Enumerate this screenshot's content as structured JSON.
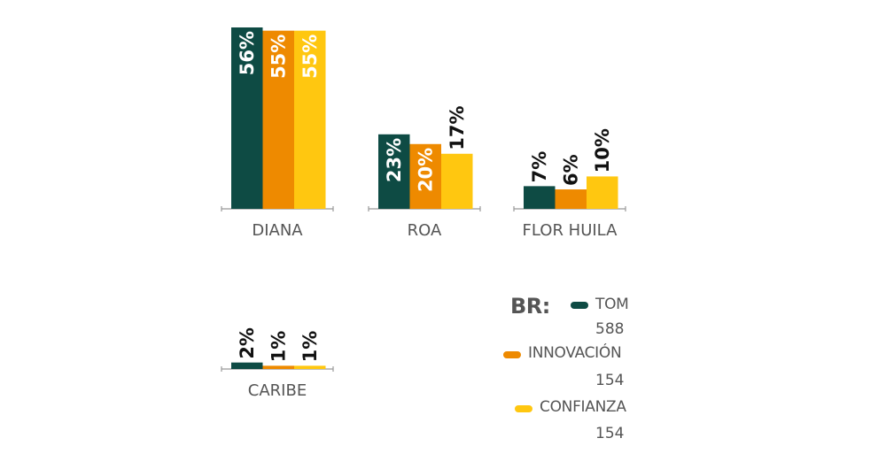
{
  "chart_data": {
    "type": "bar",
    "categories": [
      "DIANA",
      "ROA",
      "FLOR HUILA",
      "CARIBE"
    ],
    "series": [
      {
        "name": "TOM",
        "values": [
          56,
          23,
          7,
          2
        ],
        "labels": [
          "56%",
          "23%",
          "7%",
          "2%"
        ],
        "color": "#0e4b44"
      },
      {
        "name": "INNOVACIÓN",
        "values": [
          55,
          20,
          6,
          1
        ],
        "labels": [
          "55%",
          "20%",
          "6%",
          "1%"
        ],
        "color": "#ee8a00"
      },
      {
        "name": "CONFIANZA",
        "values": [
          55,
          17,
          10,
          1
        ],
        "labels": [
          "55%",
          "17%",
          "10%",
          "1%"
        ],
        "color": "#ffc710"
      }
    ],
    "ylim": [
      0,
      56
    ],
    "grid": false,
    "legend_position": "bottom-right"
  },
  "legend": {
    "title": "BR:",
    "items": [
      {
        "name": "TOM",
        "count": "588",
        "color": "#0e4b44"
      },
      {
        "name": "INNOVACIÓN",
        "count": "154",
        "color": "#ee8a00"
      },
      {
        "name": "CONFIANZA",
        "count": "154",
        "color": "#ffc710"
      }
    ]
  },
  "colors": {
    "axis": "#999999",
    "category_label": "#555555",
    "label_dark_bg": "#ffffff",
    "label_light_bg": "#111111"
  }
}
